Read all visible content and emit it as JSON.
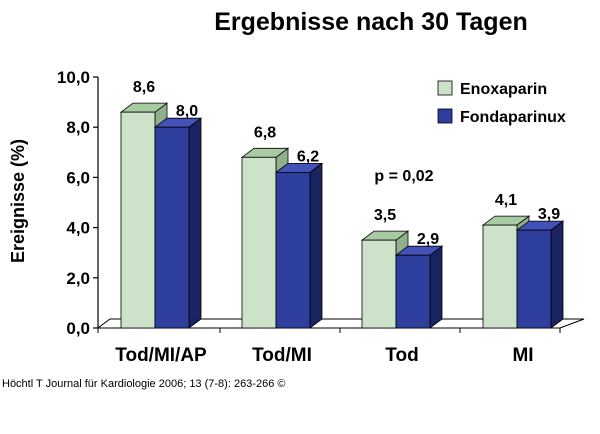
{
  "chart_data": {
    "type": "bar",
    "title": "Ergebnisse nach 30 Tagen",
    "ylabel": "Ereignisse (%)",
    "xlabel": "",
    "ylim": [
      0,
      10
    ],
    "yticks": [
      "0,0",
      "2,0",
      "4,0",
      "6,0",
      "8,0",
      "10,0"
    ],
    "categories": [
      "Tod/MI/AP",
      "Tod/MI",
      "Tod",
      "MI"
    ],
    "series": [
      {
        "name": "Enoxaparin",
        "values": [
          8.6,
          6.8,
          3.5,
          4.1
        ],
        "labels": [
          "8,6",
          "6,8",
          "3,5",
          "4,1"
        ],
        "color": "#cce3c9",
        "side_color": "#8fb08a",
        "top_color": "#a9cba4"
      },
      {
        "name": "Fondaparinux",
        "values": [
          8.0,
          6.2,
          2.9,
          3.9
        ],
        "labels": [
          "8,0",
          "6,2",
          "2,9",
          "3,9"
        ],
        "color": "#2e3e9c",
        "side_color": "#1b2462",
        "top_color": "#4252b8"
      }
    ],
    "annotation": "p = 0,02",
    "legend": "top-right",
    "grid": false
  },
  "caption": "Höchtl T Journal für Kardiologie 2006; 13 (7-8): 263-266 ©"
}
